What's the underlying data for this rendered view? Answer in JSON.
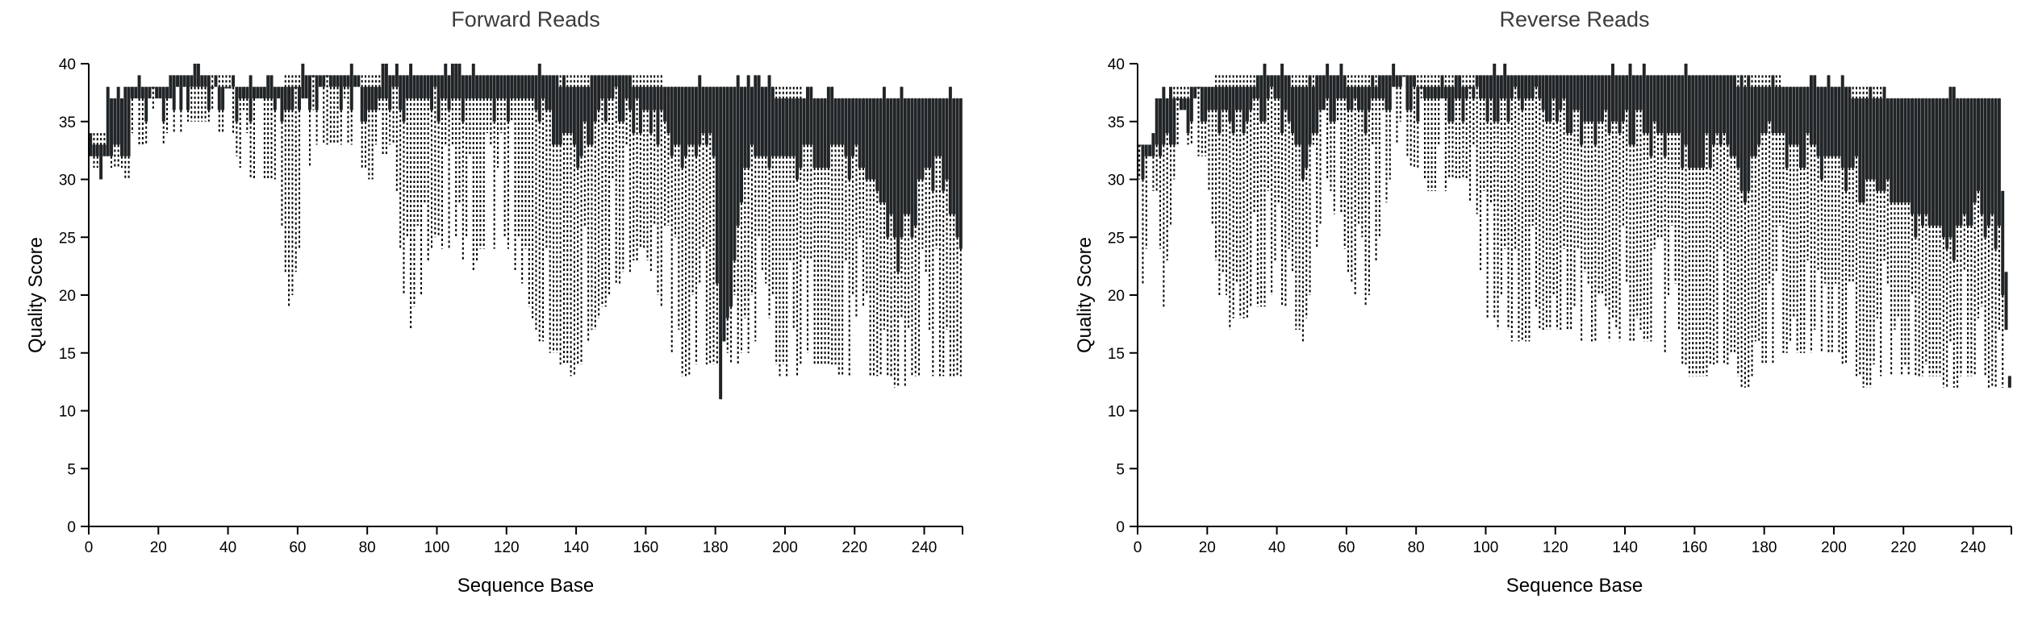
{
  "chart_data": [
    {
      "type": "box",
      "title": "Forward Reads",
      "xlabel": "Sequence Base",
      "ylabel": "Quality Score",
      "xlim": [
        0,
        251
      ],
      "ylim": [
        0,
        40
      ],
      "xticks": [
        0,
        20,
        40,
        60,
        80,
        100,
        120,
        140,
        160,
        180,
        200,
        220,
        240
      ],
      "yticks": [
        0,
        5,
        10,
        15,
        20,
        25,
        30,
        35,
        40
      ],
      "grid": false,
      "legend": "none",
      "box_color": "#212527",
      "whisker_color": "#000000",
      "anchors": [
        {
          "x": 1,
          "q1": 32,
          "q3": 33,
          "lo": 31,
          "hi": 34
        },
        {
          "x": 5,
          "q1": 32,
          "q3": 33,
          "lo": 30,
          "hi": 34
        },
        {
          "x": 6,
          "q1": 32,
          "q3": 37,
          "lo": 31,
          "hi": 37
        },
        {
          "x": 9,
          "q1": 33,
          "q3": 37,
          "lo": 31,
          "hi": 37
        },
        {
          "x": 12,
          "q1": 32,
          "q3": 37,
          "lo": 30,
          "hi": 37
        },
        {
          "x": 13,
          "q1": 37,
          "q3": 38,
          "lo": 34,
          "hi": 38
        },
        {
          "x": 20,
          "q1": 37,
          "q3": 38,
          "lo": 32,
          "hi": 38
        },
        {
          "x": 30,
          "q1": 38,
          "q3": 39,
          "lo": 35,
          "hi": 39
        },
        {
          "x": 40,
          "q1": 38,
          "q3": 38,
          "lo": 34,
          "hi": 39
        },
        {
          "x": 45,
          "q1": 37,
          "q3": 38,
          "lo": 30,
          "hi": 38
        },
        {
          "x": 55,
          "q1": 37,
          "q3": 38,
          "lo": 30,
          "hi": 38
        },
        {
          "x": 58,
          "q1": 36,
          "q3": 38,
          "lo": 18,
          "hi": 39
        },
        {
          "x": 65,
          "q1": 38,
          "q3": 39,
          "lo": 33,
          "hi": 39
        },
        {
          "x": 75,
          "q1": 38,
          "q3": 39,
          "lo": 33,
          "hi": 39
        },
        {
          "x": 82,
          "q1": 36,
          "q3": 38,
          "lo": 30,
          "hi": 39
        },
        {
          "x": 88,
          "q1": 38,
          "q3": 39,
          "lo": 33,
          "hi": 39
        },
        {
          "x": 92,
          "q1": 37,
          "q3": 39,
          "lo": 15,
          "hi": 39
        },
        {
          "x": 100,
          "q1": 37,
          "q3": 39,
          "lo": 25,
          "hi": 39
        },
        {
          "x": 110,
          "q1": 37,
          "q3": 39,
          "lo": 22,
          "hi": 39
        },
        {
          "x": 120,
          "q1": 37,
          "q3": 39,
          "lo": 25,
          "hi": 39
        },
        {
          "x": 130,
          "q1": 37,
          "q3": 39,
          "lo": 16,
          "hi": 39
        },
        {
          "x": 140,
          "q1": 33,
          "q3": 38,
          "lo": 13,
          "hi": 39
        },
        {
          "x": 150,
          "q1": 37,
          "q3": 39,
          "lo": 20,
          "hi": 39
        },
        {
          "x": 160,
          "q1": 36,
          "q3": 38,
          "lo": 24,
          "hi": 39
        },
        {
          "x": 170,
          "q1": 33,
          "q3": 38,
          "lo": 13,
          "hi": 38
        },
        {
          "x": 180,
          "q1": 33,
          "q3": 38,
          "lo": 14,
          "hi": 38
        },
        {
          "x": 182,
          "q1": 13,
          "q3": 38,
          "lo": 13,
          "hi": 38
        },
        {
          "x": 190,
          "q1": 33,
          "q3": 38,
          "lo": 15,
          "hi": 38
        },
        {
          "x": 195,
          "q1": 31,
          "q3": 38,
          "lo": 15,
          "hi": 38
        },
        {
          "x": 200,
          "q1": 32,
          "q3": 37,
          "lo": 13,
          "hi": 38
        },
        {
          "x": 210,
          "q1": 33,
          "q3": 37,
          "lo": 14,
          "hi": 37
        },
        {
          "x": 220,
          "q1": 32,
          "q3": 37,
          "lo": 13,
          "hi": 37
        },
        {
          "x": 230,
          "q1": 27,
          "q3": 37,
          "lo": 13,
          "hi": 37
        },
        {
          "x": 233,
          "q1": 24,
          "q3": 37,
          "lo": 12,
          "hi": 37
        },
        {
          "x": 240,
          "q1": 30,
          "q3": 37,
          "lo": 13,
          "hi": 37
        },
        {
          "x": 245,
          "q1": 32,
          "q3": 37,
          "lo": 13,
          "hi": 37
        },
        {
          "x": 251,
          "q1": 26,
          "q3": 37,
          "lo": 13,
          "hi": 37
        }
      ]
    },
    {
      "type": "box",
      "title": "Reverse Reads",
      "xlabel": "Sequence Base",
      "ylabel": "Quality Score",
      "xlim": [
        0,
        251
      ],
      "ylim": [
        0,
        40
      ],
      "xticks": [
        0,
        20,
        40,
        60,
        80,
        100,
        120,
        140,
        160,
        180,
        200,
        220,
        240
      ],
      "yticks": [
        0,
        5,
        10,
        15,
        20,
        25,
        30,
        35,
        40
      ],
      "grid": false,
      "legend": "none",
      "box_color": "#212527",
      "whisker_color": "#000000",
      "anchors": [
        {
          "x": 1,
          "q1": 32,
          "q3": 33,
          "lo": 18,
          "hi": 33
        },
        {
          "x": 5,
          "q1": 32,
          "q3": 33,
          "lo": 29,
          "hi": 33
        },
        {
          "x": 6,
          "q1": 33,
          "q3": 36,
          "lo": 29,
          "hi": 37
        },
        {
          "x": 8,
          "q1": 33,
          "q3": 37,
          "lo": 19,
          "hi": 37
        },
        {
          "x": 12,
          "q1": 36,
          "q3": 37,
          "lo": 33,
          "hi": 38
        },
        {
          "x": 20,
          "q1": 37,
          "q3": 38,
          "lo": 32,
          "hi": 38
        },
        {
          "x": 25,
          "q1": 36,
          "q3": 38,
          "lo": 17,
          "hi": 39
        },
        {
          "x": 30,
          "q1": 36,
          "q3": 38,
          "lo": 18,
          "hi": 39
        },
        {
          "x": 40,
          "q1": 37,
          "q3": 39,
          "lo": 20,
          "hi": 39
        },
        {
          "x": 48,
          "q1": 32,
          "q3": 38,
          "lo": 16,
          "hi": 39
        },
        {
          "x": 55,
          "q1": 37,
          "q3": 39,
          "lo": 30,
          "hi": 39
        },
        {
          "x": 65,
          "q1": 36,
          "q3": 38,
          "lo": 17,
          "hi": 39
        },
        {
          "x": 75,
          "q1": 38,
          "q3": 39,
          "lo": 33,
          "hi": 39
        },
        {
          "x": 85,
          "q1": 37,
          "q3": 38,
          "lo": 29,
          "hi": 39
        },
        {
          "x": 95,
          "q1": 37,
          "q3": 38,
          "lo": 30,
          "hi": 39
        },
        {
          "x": 101,
          "q1": 37,
          "q3": 39,
          "lo": 18,
          "hi": 39
        },
        {
          "x": 110,
          "q1": 37,
          "q3": 39,
          "lo": 16,
          "hi": 39
        },
        {
          "x": 120,
          "q1": 37,
          "q3": 39,
          "lo": 17,
          "hi": 39
        },
        {
          "x": 130,
          "q1": 35,
          "q3": 39,
          "lo": 16,
          "hi": 39
        },
        {
          "x": 140,
          "q1": 35,
          "q3": 39,
          "lo": 16,
          "hi": 39
        },
        {
          "x": 150,
          "q1": 34,
          "q3": 39,
          "lo": 16,
          "hi": 39
        },
        {
          "x": 160,
          "q1": 33,
          "q3": 39,
          "lo": 13,
          "hi": 39
        },
        {
          "x": 170,
          "q1": 33,
          "q3": 39,
          "lo": 14,
          "hi": 39
        },
        {
          "x": 175,
          "q1": 30,
          "q3": 38,
          "lo": 12,
          "hi": 39
        },
        {
          "x": 180,
          "q1": 34,
          "q3": 38,
          "lo": 14,
          "hi": 39
        },
        {
          "x": 190,
          "q1": 33,
          "q3": 38,
          "lo": 15,
          "hi": 38
        },
        {
          "x": 200,
          "q1": 32,
          "q3": 38,
          "lo": 15,
          "hi": 38
        },
        {
          "x": 210,
          "q1": 30,
          "q3": 37,
          "lo": 12,
          "hi": 38
        },
        {
          "x": 220,
          "q1": 28,
          "q3": 37,
          "lo": 13,
          "hi": 37
        },
        {
          "x": 230,
          "q1": 26,
          "q3": 37,
          "lo": 13,
          "hi": 37
        },
        {
          "x": 233,
          "q1": 24,
          "q3": 37,
          "lo": 12,
          "hi": 37
        },
        {
          "x": 240,
          "q1": 28,
          "q3": 37,
          "lo": 13,
          "hi": 37
        },
        {
          "x": 248,
          "q1": 26,
          "q3": 37,
          "lo": 12,
          "hi": 37
        },
        {
          "x": 251,
          "q1": 12,
          "q3": 13,
          "lo": 12,
          "hi": 13
        }
      ]
    }
  ]
}
